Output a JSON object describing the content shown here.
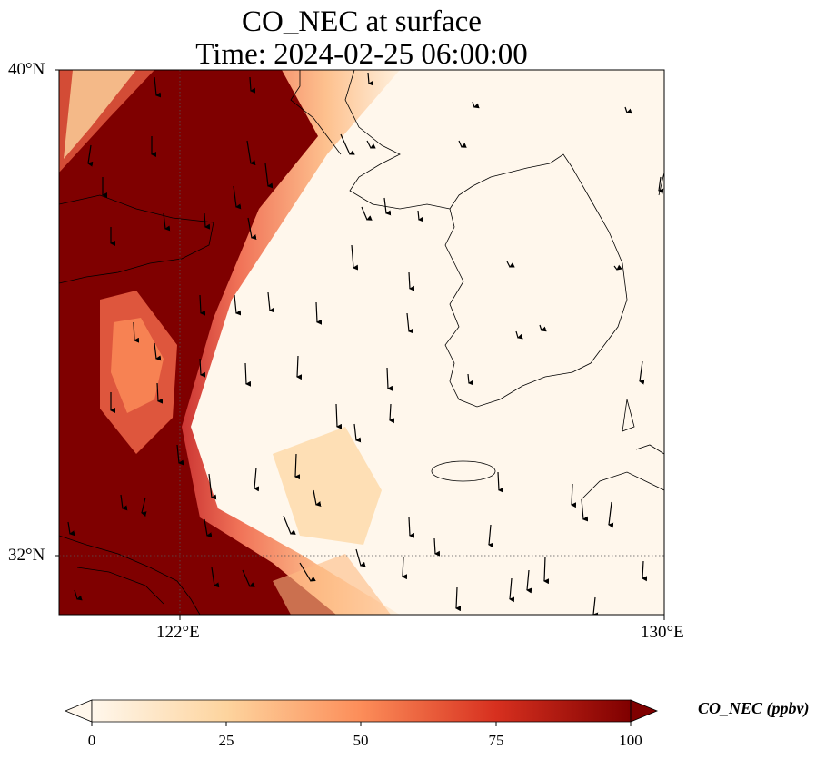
{
  "title": {
    "line1": "CO_NEC at surface",
    "line2": "Time: 2024-02-25 06:00:00"
  },
  "map": {
    "extent": {
      "lon_min": 120,
      "lon_max": 130,
      "lat_min": 31,
      "lat_max": 40
    },
    "lat_labels": [
      "40°N",
      "32°N"
    ],
    "lon_labels": [
      "122°E",
      "130°E"
    ],
    "gridlines": {
      "lat": [
        32
      ],
      "lon": [
        122
      ],
      "style": "dotted"
    },
    "field_variable": "CO_NEC",
    "high_value_region": "western margin and East China coast",
    "wind_vectors": true
  },
  "colorbar": {
    "colormap": "OrRd",
    "vmin": 0,
    "vmax": 100,
    "extend": "both",
    "ticks": [
      "0",
      "25",
      "50",
      "75",
      "100"
    ],
    "label": "CO_NEC (ppbv)",
    "colors": [
      "#fff7ec",
      "#fdd49e",
      "#fc8d59",
      "#d7301f",
      "#7f0000"
    ]
  }
}
